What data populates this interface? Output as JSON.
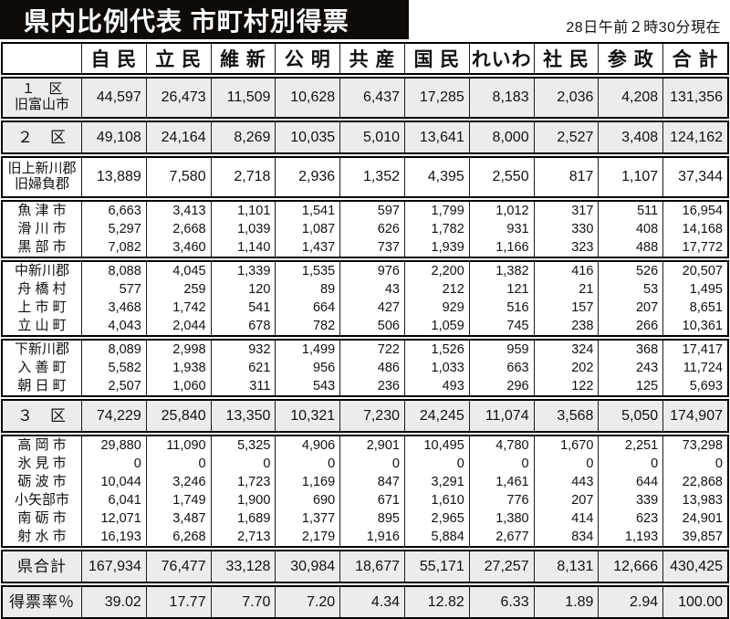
{
  "title": "県内比例代表 市町村別得票",
  "timestamp": "28日午前２時30分現在",
  "colors": {
    "banner_bg": "#0d0a08",
    "banner_text": "#ffffff",
    "shaded_row": "#ececec",
    "border": "#000000"
  },
  "table": {
    "columns": [
      "自 民",
      "立 民",
      "維 新",
      "公 明",
      "共 産",
      "国 民",
      "れいわ",
      "社 民",
      "参 政",
      "合 計"
    ],
    "groups": [
      {
        "shaded": true,
        "rows": [
          {
            "label": "１　区\n旧富山市",
            "values": [
              "44,597",
              "26,473",
              "11,509",
              "10,628",
              "6,437",
              "17,285",
              "8,183",
              "2,036",
              "4,208",
              "131,356"
            ]
          }
        ]
      },
      {
        "shaded": true,
        "rows": [
          {
            "label": "２　区",
            "values": [
              "49,108",
              "24,164",
              "8,269",
              "10,035",
              "5,010",
              "13,641",
              "8,000",
              "2,527",
              "3,408",
              "124,162"
            ]
          }
        ]
      },
      {
        "shaded": false,
        "rows": [
          {
            "label": "旧上新川郡\n旧婦負郡",
            "values": [
              "13,889",
              "7,580",
              "2,718",
              "2,936",
              "1,352",
              "4,395",
              "2,550",
              "817",
              "1,107",
              "37,344"
            ]
          }
        ]
      },
      {
        "shaded": false,
        "rows": [
          {
            "label": "魚 津 市",
            "values": [
              "6,663",
              "3,413",
              "1,101",
              "1,541",
              "597",
              "1,799",
              "1,012",
              "317",
              "511",
              "16,954"
            ]
          },
          {
            "label": "滑 川 市",
            "values": [
              "5,297",
              "2,668",
              "1,039",
              "1,087",
              "626",
              "1,782",
              "931",
              "330",
              "408",
              "14,168"
            ]
          },
          {
            "label": "黒 部 市",
            "values": [
              "7,082",
              "3,460",
              "1,140",
              "1,437",
              "737",
              "1,939",
              "1,166",
              "323",
              "488",
              "17,772"
            ]
          }
        ]
      },
      {
        "shaded": false,
        "rows": [
          {
            "label": "中新川郡",
            "values": [
              "8,088",
              "4,045",
              "1,339",
              "1,535",
              "976",
              "2,200",
              "1,382",
              "416",
              "526",
              "20,507"
            ]
          },
          {
            "label": "舟 橋 村",
            "values": [
              "577",
              "259",
              "120",
              "89",
              "43",
              "212",
              "121",
              "21",
              "53",
              "1,495"
            ]
          },
          {
            "label": "上 市 町",
            "values": [
              "3,468",
              "1,742",
              "541",
              "664",
              "427",
              "929",
              "516",
              "157",
              "207",
              "8,651"
            ]
          },
          {
            "label": "立 山 町",
            "values": [
              "4,043",
              "2,044",
              "678",
              "782",
              "506",
              "1,059",
              "745",
              "238",
              "266",
              "10,361"
            ]
          }
        ]
      },
      {
        "shaded": false,
        "rows": [
          {
            "label": "下新川郡",
            "values": [
              "8,089",
              "2,998",
              "932",
              "1,499",
              "722",
              "1,526",
              "959",
              "324",
              "368",
              "17,417"
            ]
          },
          {
            "label": "入 善 町",
            "values": [
              "5,582",
              "1,938",
              "621",
              "956",
              "486",
              "1,033",
              "663",
              "202",
              "243",
              "11,724"
            ]
          },
          {
            "label": "朝 日 町",
            "values": [
              "2,507",
              "1,060",
              "311",
              "543",
              "236",
              "493",
              "296",
              "122",
              "125",
              "5,693"
            ]
          }
        ]
      },
      {
        "shaded": true,
        "rows": [
          {
            "label": "３　区",
            "values": [
              "74,229",
              "25,840",
              "13,350",
              "10,321",
              "7,230",
              "24,245",
              "11,074",
              "3,568",
              "5,050",
              "174,907"
            ]
          }
        ]
      },
      {
        "shaded": false,
        "rows": [
          {
            "label": "高 岡 市",
            "values": [
              "29,880",
              "11,090",
              "5,325",
              "4,906",
              "2,901",
              "10,495",
              "4,780",
              "1,670",
              "2,251",
              "73,298"
            ]
          },
          {
            "label": "氷 見 市",
            "values": [
              "0",
              "0",
              "0",
              "0",
              "0",
              "0",
              "0",
              "0",
              "0",
              "0"
            ]
          },
          {
            "label": "砺 波 市",
            "values": [
              "10,044",
              "3,246",
              "1,723",
              "1,169",
              "847",
              "3,291",
              "1,461",
              "443",
              "644",
              "22,868"
            ]
          },
          {
            "label": "小矢部市",
            "values": [
              "6,041",
              "1,749",
              "1,900",
              "690",
              "671",
              "1,610",
              "776",
              "207",
              "339",
              "13,983"
            ]
          },
          {
            "label": "南 砺 市",
            "values": [
              "12,071",
              "3,487",
              "1,689",
              "1,377",
              "895",
              "2,965",
              "1,380",
              "414",
              "623",
              "24,901"
            ]
          },
          {
            "label": "射 水 市",
            "values": [
              "16,193",
              "6,268",
              "2,713",
              "2,179",
              "1,916",
              "5,884",
              "2,677",
              "834",
              "1,193",
              "39,857"
            ]
          }
        ]
      },
      {
        "shaded": true,
        "rows": [
          {
            "label": "県合計",
            "values": [
              "167,934",
              "76,477",
              "33,128",
              "30,984",
              "18,677",
              "55,171",
              "27,257",
              "8,131",
              "12,666",
              "430,425"
            ]
          }
        ]
      },
      {
        "shaded": true,
        "rows": [
          {
            "label": "得票率％",
            "values": [
              "39.02",
              "17.77",
              "7.70",
              "7.20",
              "4.34",
              "12.82",
              "6.33",
              "1.89",
              "2.94",
              "100.00"
            ]
          }
        ]
      }
    ]
  }
}
